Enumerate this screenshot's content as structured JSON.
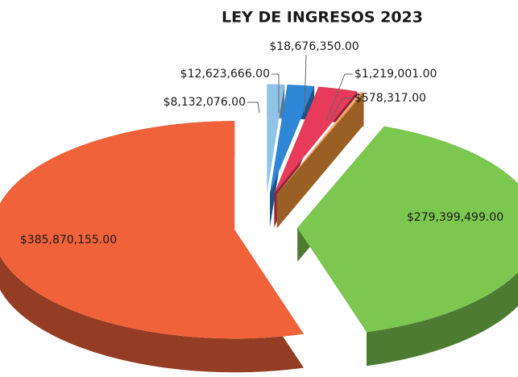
{
  "chart_data": {
    "type": "pie",
    "title": "LEY DE INGRESOS 2023",
    "categories": [
      null,
      null,
      null,
      null,
      null,
      null,
      null
    ],
    "values": [
      8132076,
      12623666,
      18676350,
      1219001,
      578317,
      279399499,
      385870155
    ],
    "value_labels": [
      "$8,132,076.00",
      "$12,623,666.00",
      "$18,676,350.00",
      "$1,219,001.00",
      "$578,317.00",
      "$279,399,499.00",
      "$385,870,155.00"
    ],
    "colors": [
      "#8fc3e8",
      "#2e86d6",
      "#e83a5a",
      "#f4b183",
      "#f79a3a",
      "#7cc750",
      "#f0623a"
    ]
  }
}
